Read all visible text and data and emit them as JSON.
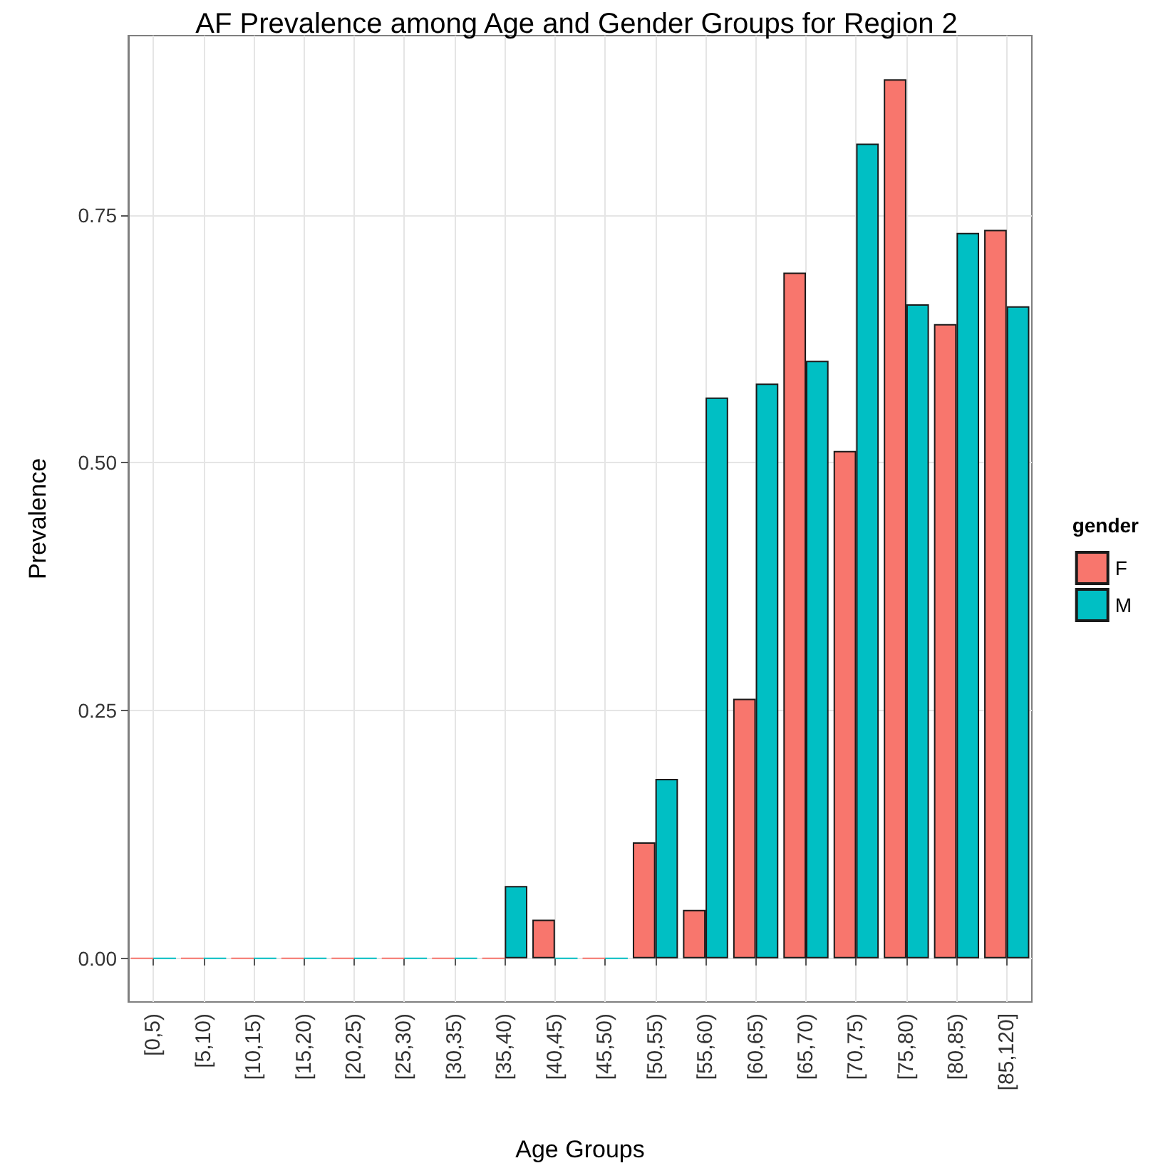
{
  "chart_data": {
    "type": "bar",
    "title": "AF Prevalence among Age and Gender Groups for Region 2",
    "xlabel": "Age Groups",
    "ylabel": "Prevalence",
    "legend_title": "gender",
    "categories": [
      "[0,5)",
      "[5,10)",
      "[10,15)",
      "[15,20)",
      "[20,25)",
      "[25,30)",
      "[30,35)",
      "[35,40)",
      "[40,45)",
      "[45,50)",
      "[50,55)",
      "[55,60)",
      "[60,65)",
      "[65,70)",
      "[70,75)",
      "[75,80)",
      "[80,85)",
      "[85,120]"
    ],
    "series": [
      {
        "name": "F",
        "color": "#f8766d",
        "values": [
          0,
          0,
          0,
          0,
          0,
          0,
          0,
          0,
          0.039,
          0,
          0.117,
          0.049,
          0.262,
          0.692,
          0.512,
          0.887,
          0.64,
          0.735
        ]
      },
      {
        "name": "M",
        "color": "#00bfc4",
        "values": [
          0,
          0,
          0,
          0,
          0,
          0,
          0,
          0.073,
          0,
          0,
          0.181,
          0.566,
          0.58,
          0.603,
          0.822,
          0.66,
          0.732,
          0.658
        ]
      }
    ],
    "ylim": [
      -0.044,
      0.931
    ],
    "yticks": [
      {
        "value": 0,
        "label": "0.00"
      },
      {
        "value": 0.25,
        "label": "0.25"
      },
      {
        "value": 0.5,
        "label": "0.50"
      },
      {
        "value": 0.75,
        "label": "0.75"
      }
    ],
    "grid": true,
    "legend": "right"
  }
}
